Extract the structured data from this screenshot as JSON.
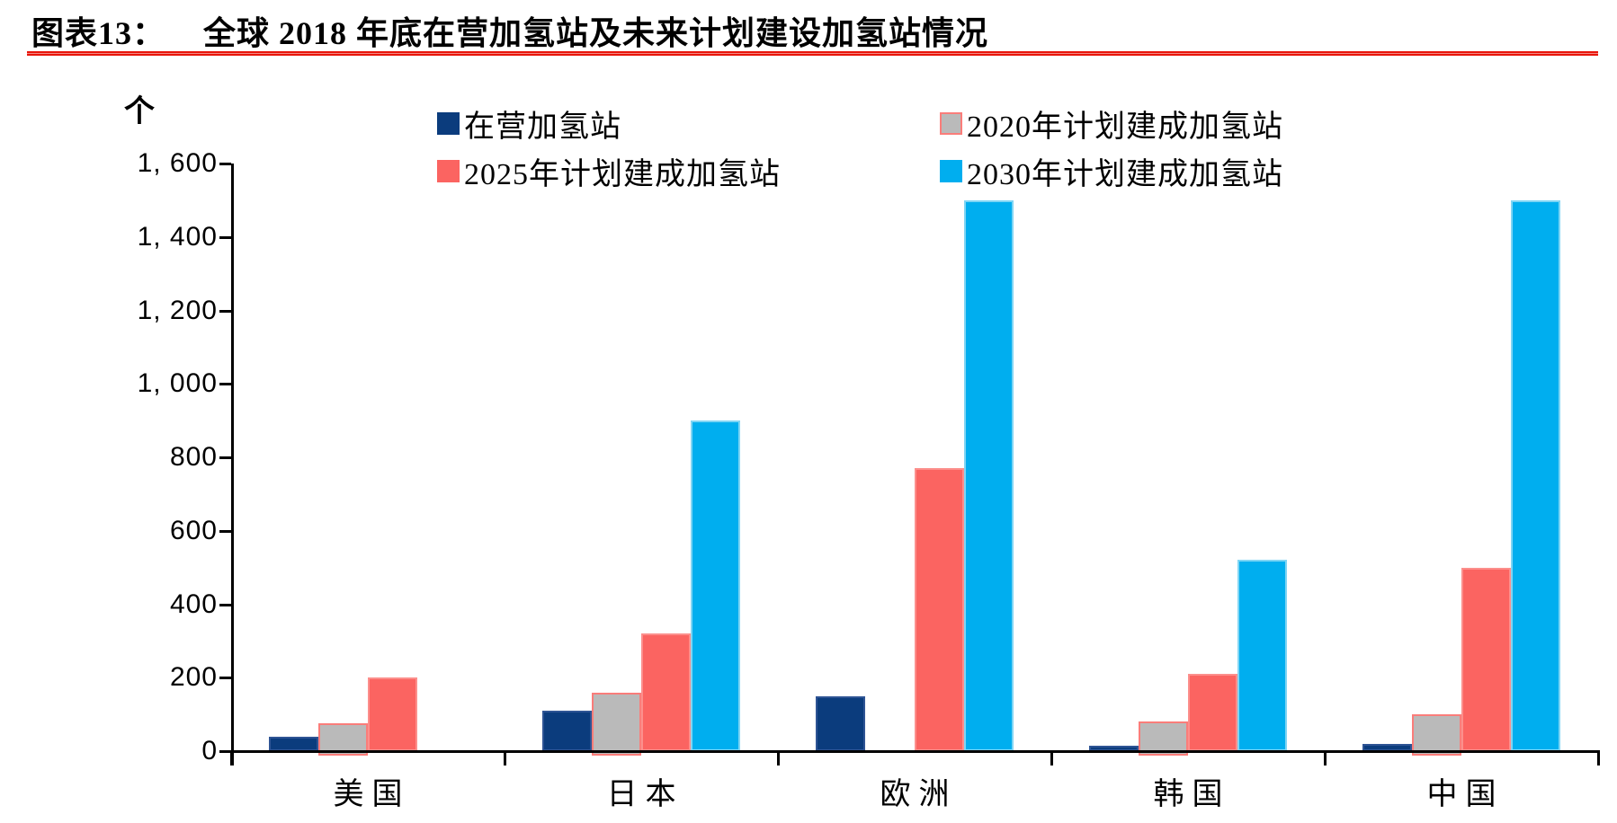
{
  "header": {
    "label": "图表13：",
    "title": "全球 2018 年底在营加氢站及未来计划建设加氢站情况"
  },
  "chart_data": {
    "type": "bar",
    "title": "全球2018年底在营加氢站及未来计划建设加氢站情况",
    "unit_label": "个",
    "categories": [
      "美国",
      "日本",
      "欧洲",
      "韩国",
      "中国"
    ],
    "series": [
      {
        "name": "在营加氢站",
        "color": "#0b3c7d",
        "border_color": "#2e5494",
        "values": [
          40,
          110,
          150,
          15,
          20
        ]
      },
      {
        "name": "2020年计划建成加氢站",
        "color": "#bababa",
        "border_color": "#fa7d7a",
        "values": [
          75,
          160,
          null,
          80,
          100
        ]
      },
      {
        "name": "2025年计划建成加氢站",
        "color": "#fb6461",
        "border_color": "#fc8f8c",
        "values": [
          200,
          320,
          770,
          210,
          500
        ]
      },
      {
        "name": "2030年计划建成加氢站",
        "color": "#00aeef",
        "border_color": "#7fd5f4",
        "values": [
          null,
          900,
          1500,
          520,
          1500
        ]
      }
    ],
    "ylim": [
      0,
      1600
    ],
    "ytick_step": 200,
    "ytick_labels": [
      "0",
      "200",
      "400",
      "600",
      "800",
      "1, 000",
      "1, 200",
      "1, 400",
      "1, 600"
    ],
    "grid": false,
    "legend_position": "top",
    "accent_rule_color": "#e8150b",
    "axis_color": "#000000"
  }
}
